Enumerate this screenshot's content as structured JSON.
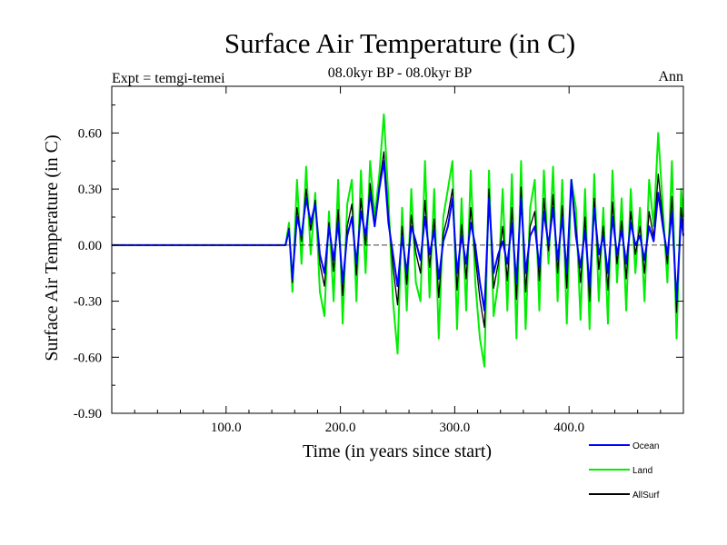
{
  "chart_data": {
    "type": "line",
    "title": "Surface Air Temperature (in C)",
    "subtitle": "08.0kyr BP - 08.0kyr BP",
    "expt_label": "Expt = temgi-temei",
    "period_label": "Ann",
    "xlabel": "Time (in years since start)",
    "ylabel": "Surface Air Temperature (in C)",
    "xlim": [
      0,
      500
    ],
    "ylim": [
      -0.9,
      0.85
    ],
    "x_ticks": [
      100,
      200,
      300,
      400
    ],
    "x_tick_labels": [
      "100.0",
      "200.0",
      "300.0",
      "400.0"
    ],
    "y_ticks": [
      -0.9,
      -0.6,
      -0.3,
      0.0,
      0.3,
      0.6
    ],
    "y_tick_labels": [
      "-0.90",
      "-0.60",
      "-0.30",
      "0.00",
      "0.30",
      "0.60"
    ],
    "reference_line": 0.0,
    "legend_position": "bottom-right",
    "series": [
      {
        "name": "Ocean",
        "color": "#0000ff",
        "x": [
          0,
          152,
          155,
          158,
          162,
          166,
          170,
          174,
          178,
          182,
          186,
          190,
          194,
          198,
          202,
          206,
          210,
          214,
          218,
          222,
          226,
          230,
          234,
          238,
          242,
          246,
          250,
          254,
          258,
          262,
          266,
          270,
          274,
          278,
          282,
          286,
          290,
          294,
          298,
          302,
          306,
          310,
          314,
          318,
          322,
          326,
          330,
          334,
          338,
          342,
          346,
          350,
          354,
          358,
          362,
          366,
          370,
          374,
          378,
          382,
          386,
          390,
          394,
          398,
          402,
          406,
          410,
          414,
          418,
          422,
          426,
          430,
          434,
          438,
          442,
          446,
          450,
          454,
          458,
          462,
          466,
          470,
          474,
          478,
          482,
          486,
          490,
          494,
          498,
          500
        ],
        "values": [
          0.0,
          0.0,
          0.08,
          -0.18,
          0.15,
          0.05,
          0.25,
          0.12,
          0.22,
          -0.05,
          -0.15,
          0.1,
          -0.08,
          0.12,
          -0.2,
          0.05,
          0.15,
          -0.1,
          0.18,
          0.05,
          0.28,
          0.1,
          0.3,
          0.45,
          0.12,
          -0.05,
          -0.22,
          0.05,
          -0.15,
          0.1,
          0.02,
          -0.08,
          0.15,
          -0.05,
          0.08,
          -0.18,
          0.02,
          0.1,
          0.25,
          -0.15,
          0.05,
          -0.1,
          0.12,
          0.0,
          -0.2,
          -0.35,
          0.25,
          -0.15,
          -0.05,
          0.02,
          -0.1,
          0.12,
          -0.2,
          0.25,
          -0.15,
          0.05,
          0.1,
          -0.12,
          0.18,
          0.0,
          0.2,
          -0.08,
          0.15,
          -0.15,
          0.35,
          0.05,
          -0.12,
          0.08,
          -0.22,
          0.2,
          -0.05,
          0.05,
          -0.15,
          0.15,
          -0.05,
          0.08,
          -0.1,
          0.12,
          0.0,
          0.05,
          -0.08,
          0.1,
          0.02,
          0.28,
          0.1,
          -0.05,
          0.18,
          -0.3,
          0.15,
          0.05
        ]
      },
      {
        "name": "Land",
        "color": "#00ee00",
        "x": [
          0,
          152,
          155,
          158,
          162,
          166,
          170,
          174,
          178,
          182,
          186,
          190,
          194,
          198,
          202,
          206,
          210,
          214,
          218,
          222,
          226,
          230,
          234,
          238,
          242,
          246,
          250,
          254,
          258,
          262,
          266,
          270,
          274,
          278,
          282,
          286,
          290,
          294,
          298,
          302,
          306,
          310,
          314,
          318,
          322,
          326,
          330,
          334,
          338,
          342,
          346,
          350,
          354,
          358,
          362,
          366,
          370,
          374,
          378,
          382,
          386,
          390,
          394,
          398,
          402,
          406,
          410,
          414,
          418,
          422,
          426,
          430,
          434,
          438,
          442,
          446,
          450,
          454,
          458,
          462,
          466,
          470,
          474,
          478,
          482,
          486,
          490,
          494,
          498,
          500
        ],
        "values": [
          0.0,
          0.0,
          0.12,
          -0.25,
          0.35,
          -0.1,
          0.42,
          -0.05,
          0.28,
          -0.25,
          -0.38,
          0.18,
          -0.3,
          0.35,
          -0.42,
          0.22,
          0.35,
          -0.3,
          0.4,
          -0.15,
          0.45,
          0.15,
          0.38,
          0.7,
          0.25,
          -0.3,
          -0.58,
          0.2,
          -0.35,
          0.3,
          -0.2,
          -0.3,
          0.45,
          -0.28,
          0.3,
          -0.5,
          0.15,
          0.3,
          0.45,
          -0.45,
          0.25,
          -0.35,
          0.4,
          -0.2,
          -0.5,
          -0.65,
          0.4,
          -0.38,
          -0.2,
          0.3,
          -0.35,
          0.38,
          -0.5,
          0.45,
          -0.45,
          0.2,
          0.35,
          -0.35,
          0.4,
          -0.1,
          0.42,
          -0.3,
          0.35,
          -0.42,
          0.35,
          0.2,
          -0.4,
          0.3,
          -0.45,
          0.38,
          -0.3,
          0.2,
          -0.42,
          0.4,
          -0.2,
          0.25,
          -0.35,
          0.3,
          -0.15,
          0.2,
          -0.3,
          0.35,
          0.1,
          0.6,
          0.2,
          -0.2,
          0.45,
          -0.5,
          0.3,
          0.15
        ]
      },
      {
        "name": "AllSurf",
        "color": "#000000",
        "x": [
          0,
          152,
          155,
          158,
          162,
          166,
          170,
          174,
          178,
          182,
          186,
          190,
          194,
          198,
          202,
          206,
          210,
          214,
          218,
          222,
          226,
          230,
          234,
          238,
          242,
          246,
          250,
          254,
          258,
          262,
          266,
          270,
          274,
          278,
          282,
          286,
          290,
          294,
          298,
          302,
          306,
          310,
          314,
          318,
          322,
          326,
          330,
          334,
          338,
          342,
          346,
          350,
          354,
          358,
          362,
          366,
          370,
          374,
          378,
          382,
          386,
          390,
          394,
          398,
          402,
          406,
          410,
          414,
          418,
          422,
          426,
          430,
          434,
          438,
          442,
          446,
          450,
          454,
          458,
          462,
          466,
          470,
          474,
          478,
          482,
          486,
          490,
          494,
          498,
          500
        ],
        "values": [
          0.0,
          0.0,
          0.09,
          -0.2,
          0.2,
          0.02,
          0.3,
          0.08,
          0.24,
          -0.1,
          -0.22,
          0.12,
          -0.14,
          0.19,
          -0.27,
          0.1,
          0.22,
          -0.16,
          0.25,
          0.0,
          0.33,
          0.11,
          0.32,
          0.5,
          0.16,
          -0.12,
          -0.32,
          0.1,
          -0.21,
          0.16,
          -0.04,
          -0.15,
          0.24,
          -0.12,
          0.14,
          -0.28,
          0.06,
          0.16,
          0.3,
          -0.24,
          0.11,
          -0.18,
          0.2,
          -0.06,
          -0.29,
          -0.44,
          0.3,
          -0.23,
          -0.1,
          0.1,
          -0.19,
          0.2,
          -0.29,
          0.31,
          -0.25,
          0.1,
          0.18,
          -0.19,
          0.25,
          -0.03,
          0.27,
          -0.15,
          0.21,
          -0.23,
          0.35,
          0.1,
          -0.2,
          0.15,
          -0.3,
          0.25,
          -0.13,
          0.1,
          -0.24,
          0.23,
          -0.1,
          0.13,
          -0.18,
          0.18,
          -0.05,
          0.1,
          -0.15,
          0.18,
          0.04,
          0.38,
          0.13,
          -0.1,
          0.26,
          -0.36,
          0.2,
          0.08
        ]
      }
    ]
  }
}
